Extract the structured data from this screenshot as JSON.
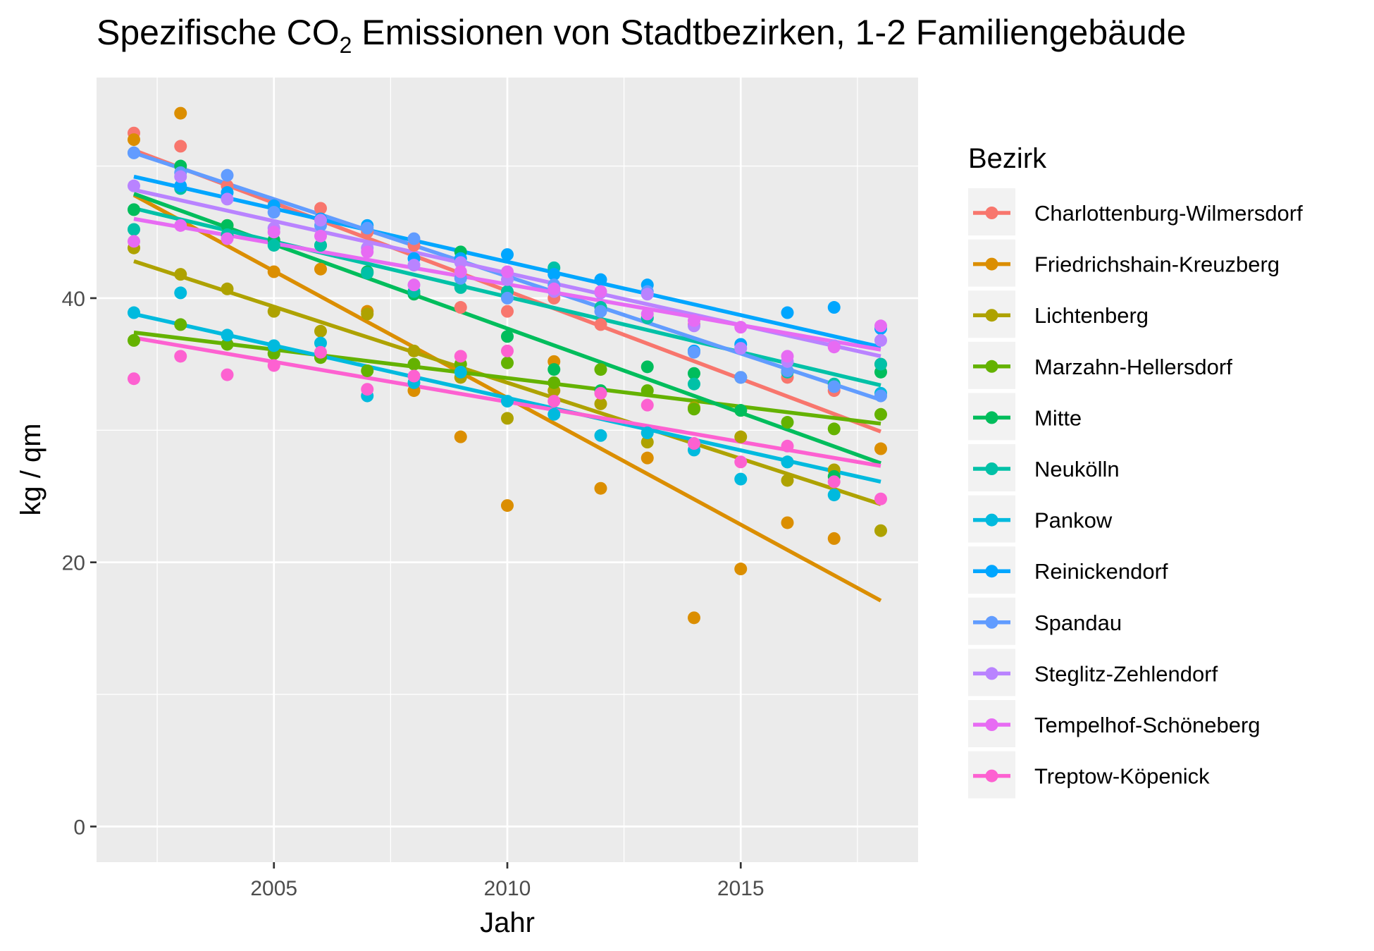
{
  "chart_data": {
    "type": "scatter",
    "title_main": "Spezifische CO",
    "title_sub": "2",
    "title_rest": " Emissionen von Stadtbezirken, 1-2 Familiengebäude",
    "xlabel": "Jahr",
    "ylabel": "kg / qm",
    "xlim": [
      2001.2,
      2018.8
    ],
    "ylim": [
      -2.7,
      56.7
    ],
    "x_ticks": [
      2005,
      2010,
      2015
    ],
    "y_ticks": [
      0,
      20,
      40
    ],
    "grid": true,
    "legend_position": "right",
    "legend_title": "Bezirk",
    "x": [
      2002,
      2003,
      2004,
      2005,
      2006,
      2007,
      2008,
      2009,
      2010,
      2011,
      2012,
      2013,
      2014,
      2015,
      2016,
      2017,
      2018
    ],
    "series": [
      {
        "name": "Charlottenburg-Wilmersdorf",
        "color": "#F8766D",
        "values": [
          52.5,
          51.5,
          48.5,
          47,
          46.8,
          45,
          44,
          39.3,
          39,
          40,
          38,
          38.5,
          38,
          34,
          34,
          33,
          35
        ],
        "trend": [
          51.2,
          29.9
        ]
      },
      {
        "name": "Friedrichshain-Kreuzberg",
        "color": "#DB8E00",
        "values": [
          52,
          54,
          45.5,
          42,
          42.2,
          39,
          33,
          29.5,
          24.3,
          35.2,
          25.6,
          27.9,
          15.8,
          19.5,
          23,
          21.8,
          28.6
        ],
        "trend": [
          47.8,
          17.1
        ]
      },
      {
        "name": "Lichtenberg",
        "color": "#AEA200",
        "values": [
          43.8,
          41.8,
          40.7,
          39,
          37.5,
          38.8,
          36,
          34,
          30.9,
          33,
          32,
          29.1,
          31.7,
          29.5,
          26.2,
          27,
          22.4
        ],
        "trend": [
          42.8,
          24.4
        ]
      },
      {
        "name": "Marzahn-Hellersdorf",
        "color": "#64B200",
        "values": [
          36.8,
          38,
          36.5,
          35.8,
          35.5,
          34.5,
          35,
          35,
          35.1,
          33.6,
          34.6,
          33,
          31.6,
          31.5,
          30.6,
          30.1,
          31.2
        ],
        "trend": [
          37.4,
          30.5
        ]
      },
      {
        "name": "Mitte",
        "color": "#00BD5C",
        "values": [
          46.7,
          50,
          45.5,
          44.4,
          44,
          42,
          40.3,
          43.5,
          37.1,
          34.6,
          33,
          34.8,
          34.3,
          31.5,
          27.6,
          26.5,
          34.4
        ],
        "trend": [
          47.9,
          27.5
        ]
      },
      {
        "name": "Neukölln",
        "color": "#00C1A7",
        "values": [
          45.2,
          48.3,
          44.8,
          44,
          44,
          41.9,
          40.5,
          40.8,
          40.5,
          42.3,
          39.3,
          38.5,
          33.5,
          34,
          34.4,
          33.5,
          35
        ],
        "trend": [
          46.8,
          33.4
        ]
      },
      {
        "name": "Pankow",
        "color": "#00BADE",
        "values": [
          38.9,
          40.4,
          37.2,
          36.4,
          36.6,
          32.6,
          33.6,
          34.4,
          32.2,
          31.2,
          29.6,
          29.8,
          28.5,
          26.3,
          27.6,
          25.1,
          32.8
        ],
        "trend": [
          38.8,
          26.1
        ]
      },
      {
        "name": "Reinickendorf",
        "color": "#00A6FF",
        "values": [
          51,
          48.5,
          48,
          47,
          46,
          45.5,
          43,
          43,
          43.3,
          41.8,
          41.4,
          41,
          36,
          36.5,
          38.9,
          39.3,
          37.7
        ],
        "trend": [
          49.2,
          36.3
        ]
      },
      {
        "name": "Spandau",
        "color": "#619CFF",
        "values": [
          51,
          49.5,
          49.3,
          46.5,
          45.5,
          45.3,
          44.5,
          41.5,
          40,
          41,
          39,
          40.5,
          35.9,
          34,
          34.5,
          33.3,
          32.6
        ],
        "trend": [
          51,
          32.3
        ]
      },
      {
        "name": "Steglitz-Zehlendorf",
        "color": "#B983FF",
        "values": [
          48.5,
          49.2,
          47.5,
          45.3,
          45.9,
          43.8,
          42.5,
          42.7,
          41.4,
          40.5,
          40.4,
          40.3,
          37.9,
          36.2,
          35.2,
          36.4,
          36.8
        ],
        "trend": [
          48.2,
          35.6
        ]
      },
      {
        "name": "Tempelhof-Schöneberg",
        "color": "#E76BF3",
        "values": [
          44.3,
          45.5,
          44.5,
          45,
          44.7,
          43.5,
          41,
          42,
          42,
          40.7,
          40.5,
          38.8,
          38.3,
          37.8,
          35.6,
          36.3,
          37.9
        ],
        "trend": [
          46,
          36.1
        ]
      },
      {
        "name": "Treptow-Köpenick",
        "color": "#FD61D1",
        "values": [
          33.9,
          35.6,
          34.2,
          34.9,
          35.9,
          33.1,
          34.1,
          35.6,
          36,
          32.2,
          32.8,
          31.9,
          29,
          27.6,
          28.8,
          26.1,
          24.8
        ],
        "trend": [
          37,
          27.3
        ]
      }
    ]
  }
}
